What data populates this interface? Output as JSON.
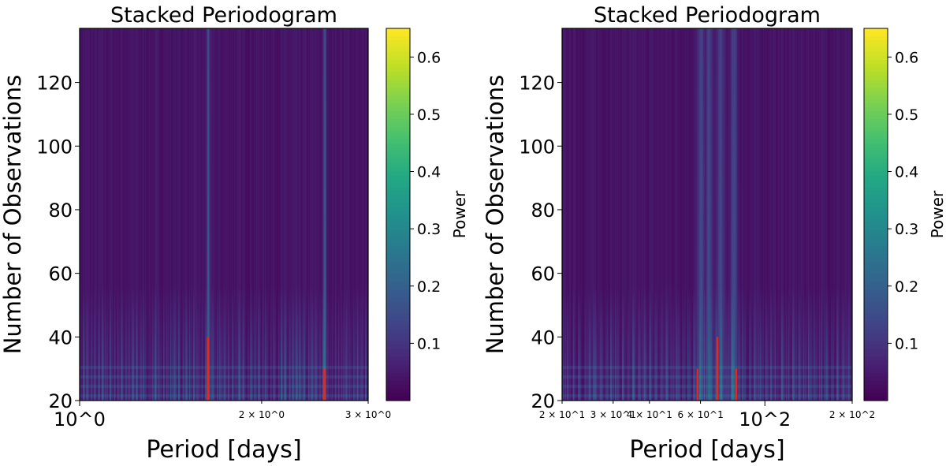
{
  "chart_data": [
    {
      "type": "heatmap",
      "title": "Stacked Periodogram",
      "xlabel": "Period [days]",
      "ylabel": "Number of Observations",
      "xscale": "log",
      "xlim": [
        1,
        3
      ],
      "ylim": [
        20,
        137
      ],
      "xticks": [
        {
          "value": 1,
          "label": "10^0",
          "major": true
        },
        {
          "value": 2,
          "label": "2 × 10^0"
        },
        {
          "value": 3,
          "label": "3 × 10^0"
        }
      ],
      "yticks": [
        20,
        40,
        60,
        80,
        100,
        120
      ],
      "colorbar": {
        "label": "Power",
        "range": [
          0,
          0.65
        ],
        "ticks": [
          0.1,
          0.2,
          0.3,
          0.4,
          0.5,
          0.6
        ],
        "colormap": "viridis"
      },
      "bright_periods": [
        1.63,
        2.54
      ],
      "markers": [
        {
          "period": 1.63,
          "y_max": 40,
          "color": "#e8251f"
        },
        {
          "period": 2.54,
          "y_max": 30,
          "color": "#e8251f"
        }
      ]
    },
    {
      "type": "heatmap",
      "title": "Stacked Periodogram",
      "xlabel": "Period [days]",
      "ylabel": "Number of Observations",
      "xscale": "log",
      "xlim": [
        20,
        200
      ],
      "ylim": [
        20,
        137
      ],
      "xticks": [
        {
          "value": 20,
          "label": "2 × 10^1"
        },
        {
          "value": 30,
          "label": "3 × 10^1"
        },
        {
          "value": 40,
          "label": "4 × 10^1"
        },
        {
          "value": 60,
          "label": "6 × 10^1"
        },
        {
          "value": 100,
          "label": "10^2",
          "major": true
        },
        {
          "value": 200,
          "label": "2 × 10^2"
        }
      ],
      "yticks": [
        20,
        40,
        60,
        80,
        100,
        120
      ],
      "colorbar": {
        "label": "Power",
        "range": [
          0,
          0.65
        ],
        "ticks": [
          0.1,
          0.2,
          0.3,
          0.4,
          0.5,
          0.6
        ],
        "colormap": "viridis"
      },
      "bright_periods": [
        60,
        64,
        70,
        78
      ],
      "markers": [
        {
          "period": 58.6,
          "y_max": 30,
          "color": "#e8251f"
        },
        {
          "period": 68.6,
          "y_max": 40,
          "color": "#e8251f"
        },
        {
          "period": 79.7,
          "y_max": 30,
          "color": "#e8251f"
        }
      ]
    }
  ]
}
